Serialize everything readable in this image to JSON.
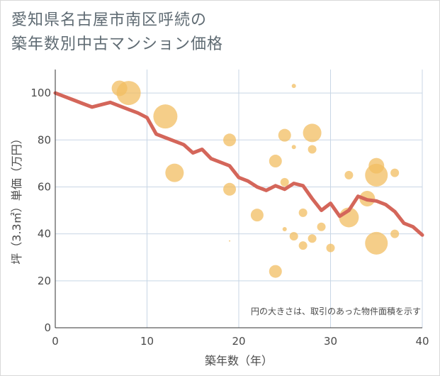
{
  "chart_data": {
    "type": "scatter",
    "title": [
      "愛知県名古屋市南区呼続の",
      "築年数別中古マンション価格"
    ],
    "xlabel": "築年数（年）",
    "ylabel": "坪（3.3㎡）単価（万円）",
    "xlim": [
      0,
      40
    ],
    "ylim": [
      0,
      110
    ],
    "xticks": [
      "0",
      "10",
      "20",
      "30",
      "40"
    ],
    "yticks": [
      "0",
      "20",
      "40",
      "60",
      "80",
      "100"
    ],
    "grid": true,
    "annotation": "円の大きさは、取引のあった物件面積を示す",
    "colors": {
      "bubble": "#f2bd62",
      "line": "#d4665a",
      "grid": "#c8d6e5"
    },
    "bubbles": [
      {
        "x": 7,
        "y": 102,
        "r": 11
      },
      {
        "x": 8,
        "y": 100,
        "r": 17
      },
      {
        "x": 12,
        "y": 90,
        "r": 17
      },
      {
        "x": 13,
        "y": 66,
        "r": 13
      },
      {
        "x": 19,
        "y": 80,
        "r": 9
      },
      {
        "x": 19,
        "y": 59,
        "r": 9
      },
      {
        "x": 19,
        "y": 37,
        "r": 1
      },
      {
        "x": 22,
        "y": 48,
        "r": 9
      },
      {
        "x": 24,
        "y": 71,
        "r": 9
      },
      {
        "x": 24,
        "y": 24,
        "r": 9
      },
      {
        "x": 25,
        "y": 82,
        "r": 9
      },
      {
        "x": 25,
        "y": 62,
        "r": 6
      },
      {
        "x": 25,
        "y": 42,
        "r": 3
      },
      {
        "x": 26,
        "y": 103,
        "r": 3
      },
      {
        "x": 26,
        "y": 77,
        "r": 3
      },
      {
        "x": 26,
        "y": 39,
        "r": 6
      },
      {
        "x": 27,
        "y": 49,
        "r": 6
      },
      {
        "x": 27,
        "y": 35,
        "r": 6
      },
      {
        "x": 28,
        "y": 83,
        "r": 13
      },
      {
        "x": 28,
        "y": 76,
        "r": 6
      },
      {
        "x": 28,
        "y": 38,
        "r": 6
      },
      {
        "x": 29,
        "y": 43,
        "r": 6
      },
      {
        "x": 30,
        "y": 34,
        "r": 6
      },
      {
        "x": 32,
        "y": 65,
        "r": 6
      },
      {
        "x": 32,
        "y": 47,
        "r": 14
      },
      {
        "x": 34,
        "y": 55,
        "r": 11
      },
      {
        "x": 35,
        "y": 69,
        "r": 11
      },
      {
        "x": 35,
        "y": 65,
        "r": 16
      },
      {
        "x": 35,
        "y": 36,
        "r": 16
      },
      {
        "x": 37,
        "y": 66,
        "r": 6
      },
      {
        "x": 37,
        "y": 40,
        "r": 6
      }
    ],
    "line": {
      "x": [
        0,
        1,
        2,
        3,
        4,
        5,
        6,
        7,
        8,
        9,
        10,
        11,
        12,
        13,
        14,
        15,
        16,
        17,
        18,
        19,
        20,
        21,
        22,
        23,
        24,
        25,
        26,
        27,
        28,
        29,
        30,
        31,
        32,
        33,
        34,
        35,
        36,
        37,
        38,
        39,
        40
      ],
      "y": [
        100,
        98.5,
        97,
        95.5,
        94,
        95,
        96,
        94.5,
        93,
        91.5,
        89.5,
        82.5,
        81,
        79.5,
        78,
        74.5,
        76,
        72,
        70.5,
        69,
        64,
        62.5,
        60,
        58.5,
        60.5,
        59,
        61.5,
        60.5,
        55,
        50,
        53,
        47.5,
        50,
        56,
        54.5,
        54,
        52.5,
        49.5,
        44.5,
        43,
        39.5
      ]
    }
  }
}
